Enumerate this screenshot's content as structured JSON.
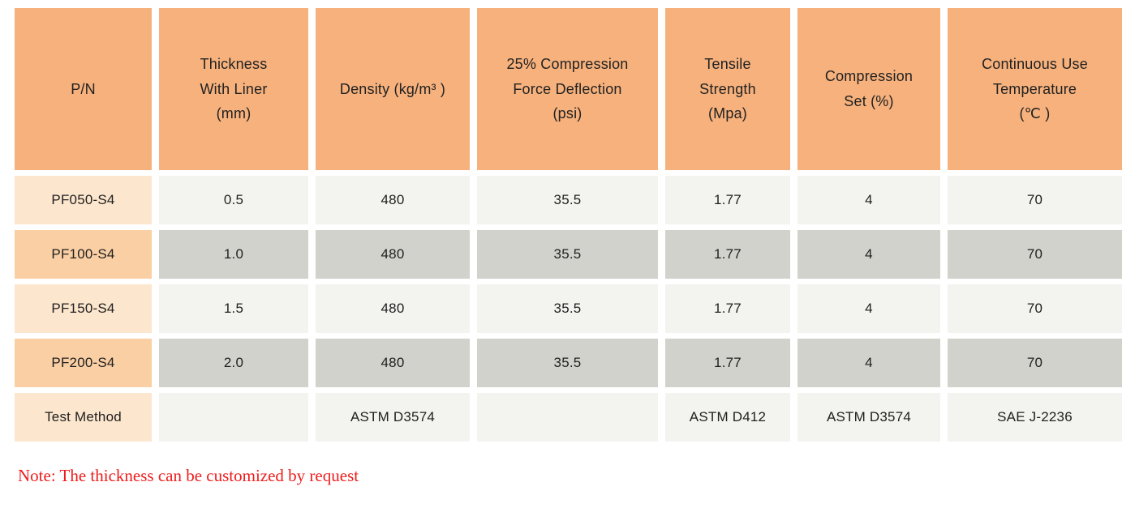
{
  "colors": {
    "header_bg": "#F6B17C",
    "pn_light_bg": "#FCE6CD",
    "pn_dark_bg": "#FACFA4",
    "data_light_bg": "#F3F3EF",
    "data_dark_bg": "#D2D2CC",
    "note_color": "#EE1C1C"
  },
  "table": {
    "columns": [
      {
        "label": "P/N"
      },
      {
        "label": "Thickness\nWith Liner\n(mm)"
      },
      {
        "label": "Density (kg/m³ )"
      },
      {
        "label": "25% Compression\nForce Deflection\n(psi)"
      },
      {
        "label": "Tensile\nStrength\n(Mpa)"
      },
      {
        "label": "Compression\nSet (%)"
      },
      {
        "label": "Continuous Use\nTemperature\n(℃ )"
      }
    ],
    "rows": [
      {
        "pn": "PF050-S4",
        "thickness": "0.5",
        "density": "480",
        "cfd": "35.5",
        "tensile": "1.77",
        "compression_set": "4",
        "temp": "70"
      },
      {
        "pn": "PF100-S4",
        "thickness": "1.0",
        "density": "480",
        "cfd": "35.5",
        "tensile": "1.77",
        "compression_set": "4",
        "temp": "70"
      },
      {
        "pn": "PF150-S4",
        "thickness": "1.5",
        "density": "480",
        "cfd": "35.5",
        "tensile": "1.77",
        "compression_set": "4",
        "temp": "70"
      },
      {
        "pn": "PF200-S4",
        "thickness": "2.0",
        "density": "480",
        "cfd": "35.5",
        "tensile": "1.77",
        "compression_set": "4",
        "temp": "70"
      },
      {
        "pn": "Test Method",
        "thickness": "",
        "density": "ASTM D3574",
        "cfd": "",
        "tensile": "ASTM D412",
        "compression_set": "ASTM D3574",
        "temp": "SAE J-2236"
      }
    ]
  },
  "note": {
    "text": "Note: The thickness can be customized by request"
  }
}
